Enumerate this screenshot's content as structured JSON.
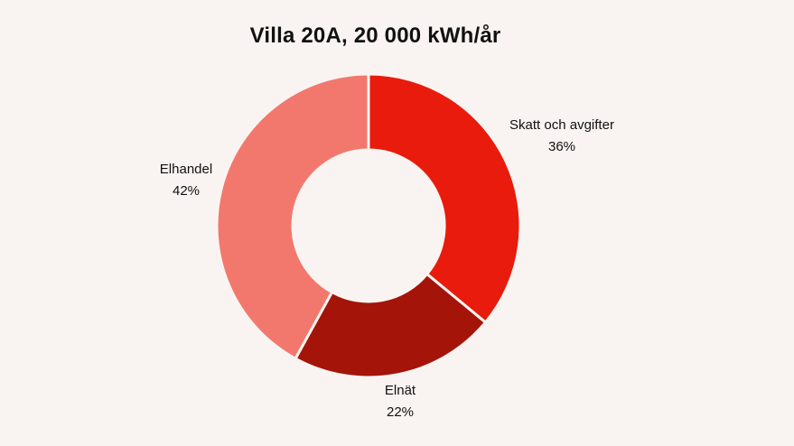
{
  "chart_data": {
    "type": "pie",
    "title": "Villa 20A, 20 000 kWh/år",
    "slices": [
      {
        "label": "Skatt och avgifter",
        "value": 36,
        "value_label": "36%",
        "color": "#e91b0c"
      },
      {
        "label": "Elnät",
        "value": 22,
        "value_label": "22%",
        "color": "#a51409"
      },
      {
        "label": "Elhandel",
        "value": 42,
        "value_label": "42%",
        "color": "#f2786d"
      }
    ],
    "donut": true,
    "legend": "none"
  },
  "colors": {
    "background": "#f9f4f1",
    "text": "#111111"
  }
}
